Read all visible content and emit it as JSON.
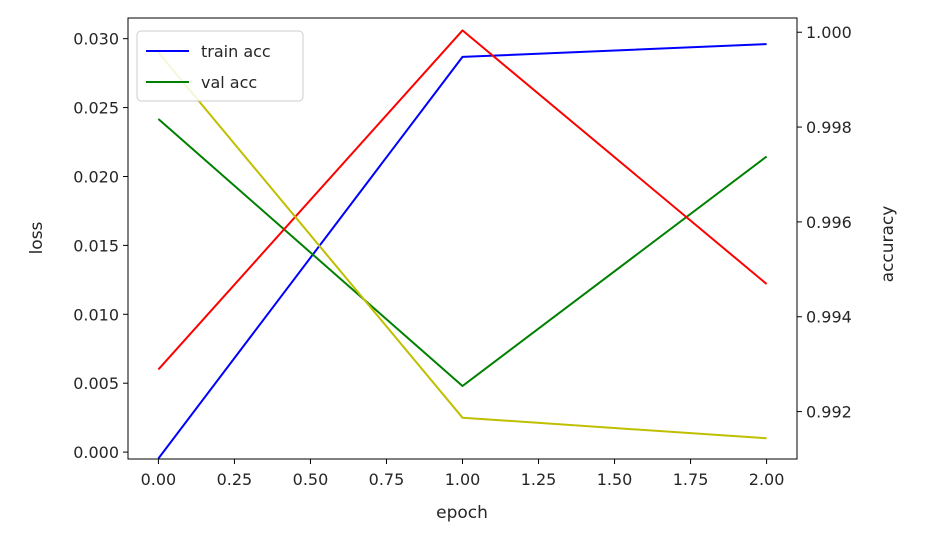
{
  "chart_data": {
    "type": "line",
    "title": "",
    "xlabel": "epoch",
    "ylabel_left": "loss",
    "ylabel_right": "accuracy",
    "x": [
      0,
      1,
      2
    ],
    "xlim": [
      -0.1,
      2.1
    ],
    "ylim_left": [
      -0.0005,
      0.0315
    ],
    "ylim_right": [
      0.991,
      1.0003
    ],
    "x_ticks": [
      "0.00",
      "0.25",
      "0.50",
      "0.75",
      "1.00",
      "1.25",
      "1.50",
      "1.75",
      "2.00"
    ],
    "y_left_ticks": [
      "0.000",
      "0.005",
      "0.010",
      "0.015",
      "0.020",
      "0.025",
      "0.030"
    ],
    "y_right_ticks": [
      "0.992",
      "0.994",
      "0.996",
      "0.998",
      "1.000"
    ],
    "grid": false,
    "legend_position": "upper-left",
    "series": [
      {
        "name": "train acc",
        "axis": "right",
        "color": "#0000ff",
        "values": [
          0.99101,
          0.99948,
          0.99975
        ],
        "in_legend": true
      },
      {
        "name": "val acc",
        "axis": "right",
        "color": "#008000",
        "values": [
          0.99817,
          0.99254,
          0.99738
        ],
        "in_legend": true
      },
      {
        "axis": "left",
        "color": "#ff0000",
        "values": [
          0.006,
          0.0306,
          0.0122
        ],
        "in_legend": false
      },
      {
        "axis": "left",
        "color": "#bfbf00",
        "values": [
          0.029,
          0.0025,
          0.001
        ],
        "in_legend": false
      }
    ]
  }
}
